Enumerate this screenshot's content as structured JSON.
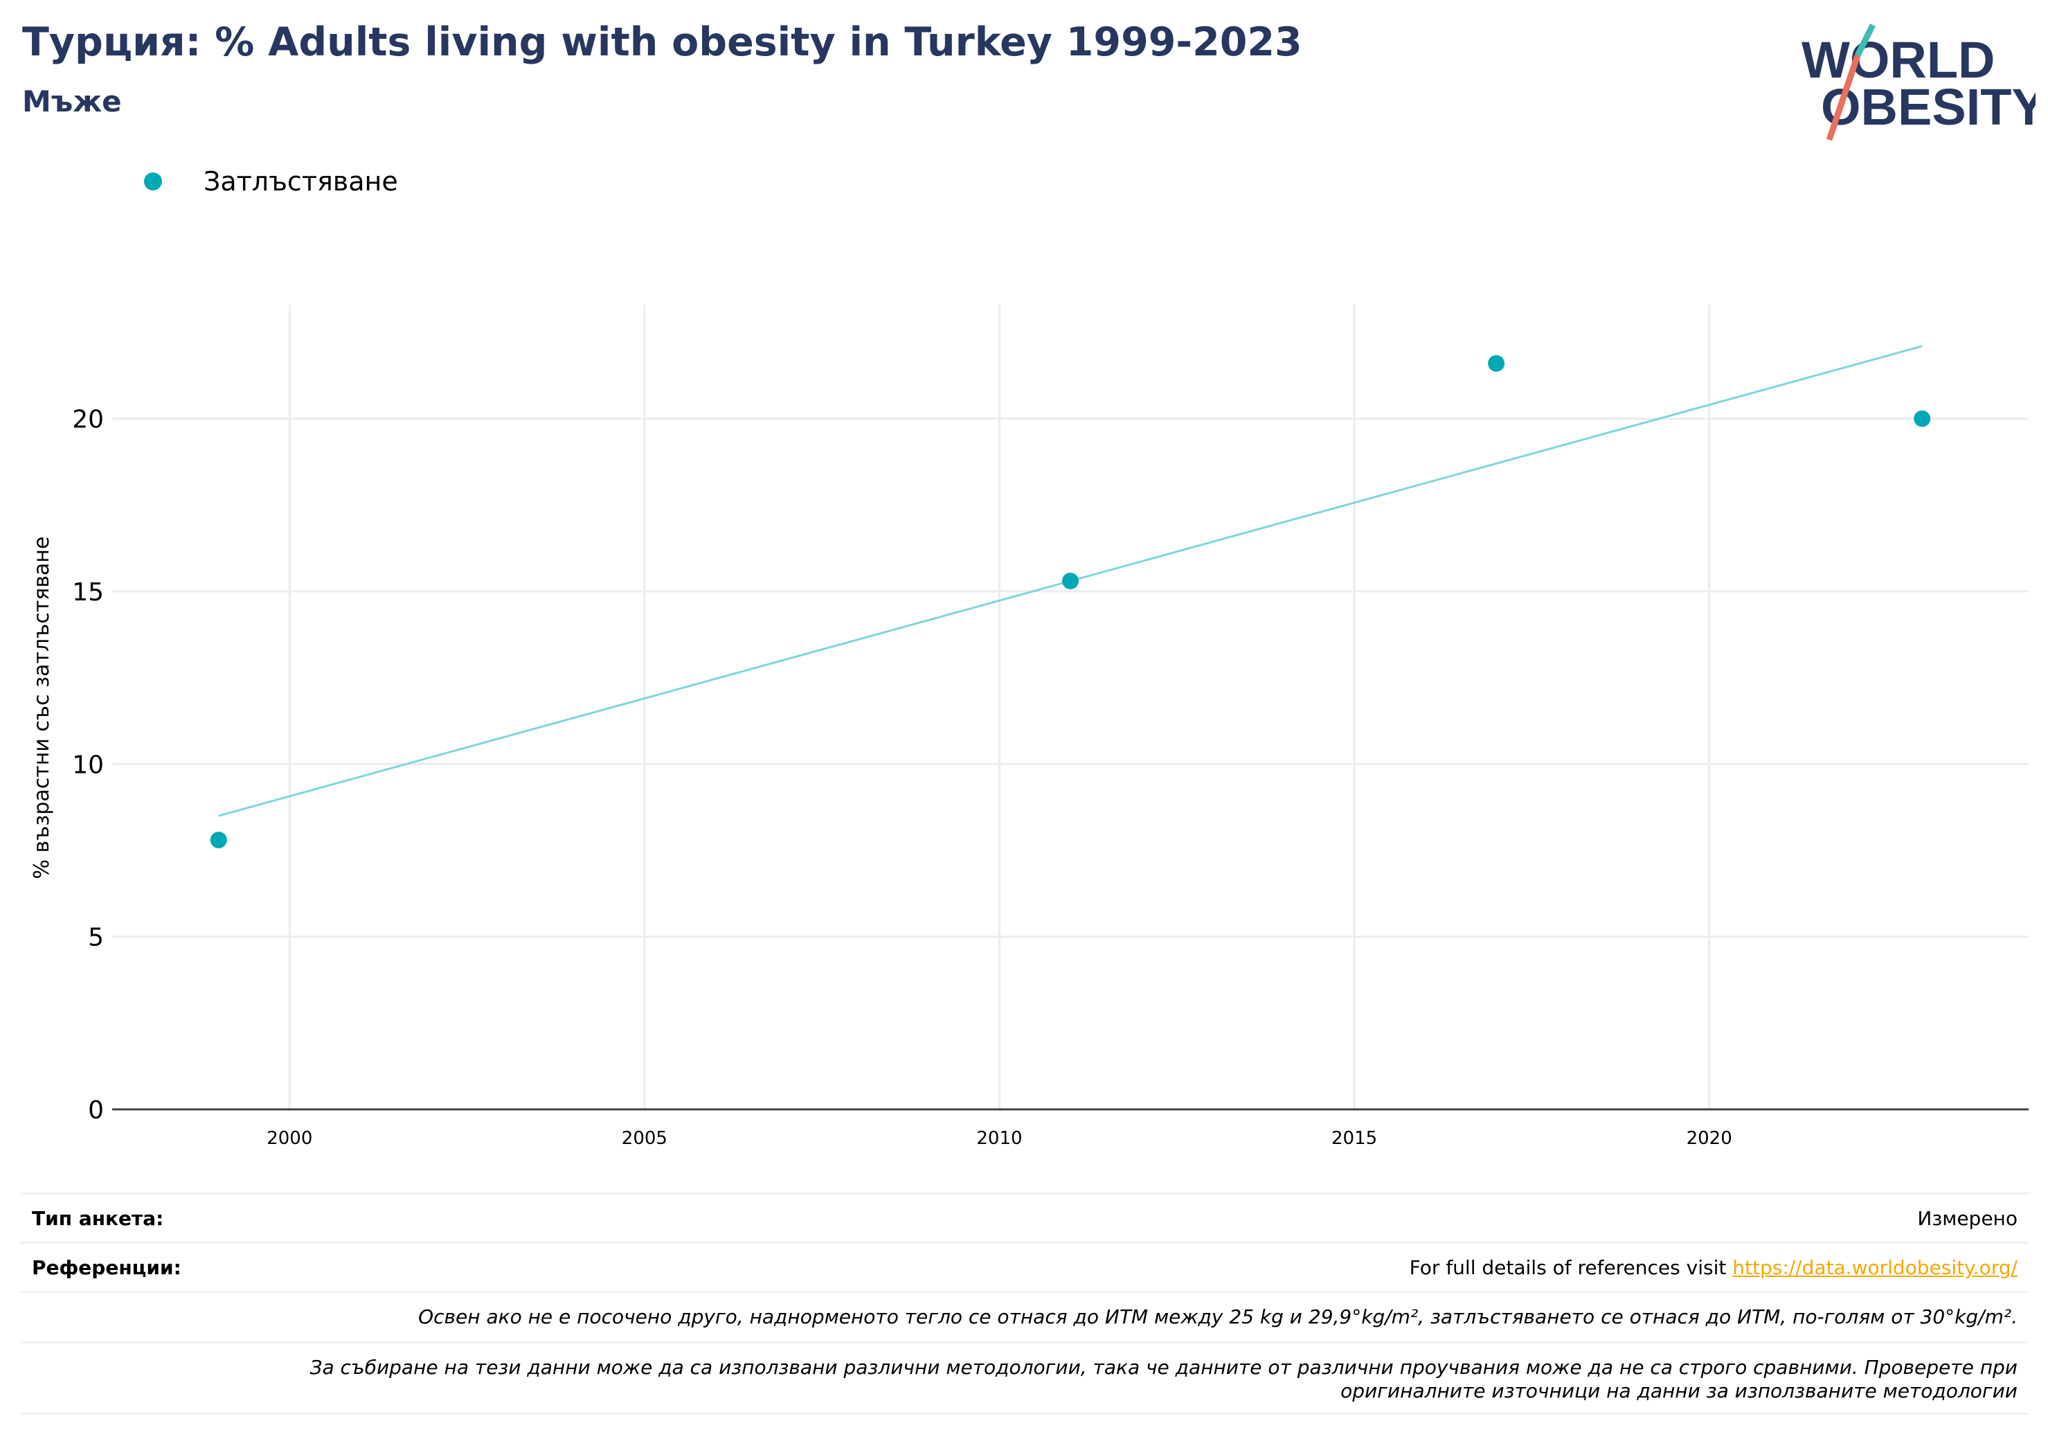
{
  "header": {
    "title": "Турция: % Adults living with obesity in Turkey 1999-2023",
    "subtitle": "Мъже"
  },
  "logo": {
    "line1": "WORLD",
    "line2": "OBESITY"
  },
  "colors": {
    "title": "#27375f",
    "accent": "#00a9b5",
    "trend": "#7fd6dc",
    "link": "#f5a800",
    "logo_red": "#e8705c"
  },
  "chart_data": {
    "type": "scatter",
    "series": [
      {
        "name": "Затлъстяване",
        "x": [
          1999,
          2011,
          2017,
          2023
        ],
        "y": [
          7.8,
          15.3,
          21.6,
          20.0
        ]
      }
    ],
    "trendline": {
      "x": [
        1999,
        2023
      ],
      "y": [
        8.5,
        22.1
      ]
    },
    "ylabel": "% възрастни със затлъстяване",
    "xlabel": "",
    "xlim": [
      1997.5,
      2024.5
    ],
    "ylim": [
      0,
      23.3
    ],
    "xticks": [
      2000,
      2005,
      2010,
      2015,
      2020
    ],
    "yticks": [
      0,
      5,
      10,
      15,
      20
    ],
    "grid": true,
    "legend_position": "top-left"
  },
  "info": {
    "survey_type_label": "Тип анкета:",
    "survey_type_value": "Измерено",
    "references_label": "Референции:",
    "references_text": "For full details of references visit ",
    "references_link": "https://data.worldobesity.org/",
    "note1": "Освен ако не е посочено друго, наднорменото тегло се отнася до ИТМ между 25 kg и 29,9°kg/m², затлъстяването се отнася до ИТМ, по-голям от 30°kg/m².",
    "note2_line1": "За събиране на тези данни може да са използвани различни методологии, така че данните от различни проучвания може да не са строго сравними. Проверете при",
    "note2_line2": "оригиналните източници на данни за използваните методологии"
  }
}
